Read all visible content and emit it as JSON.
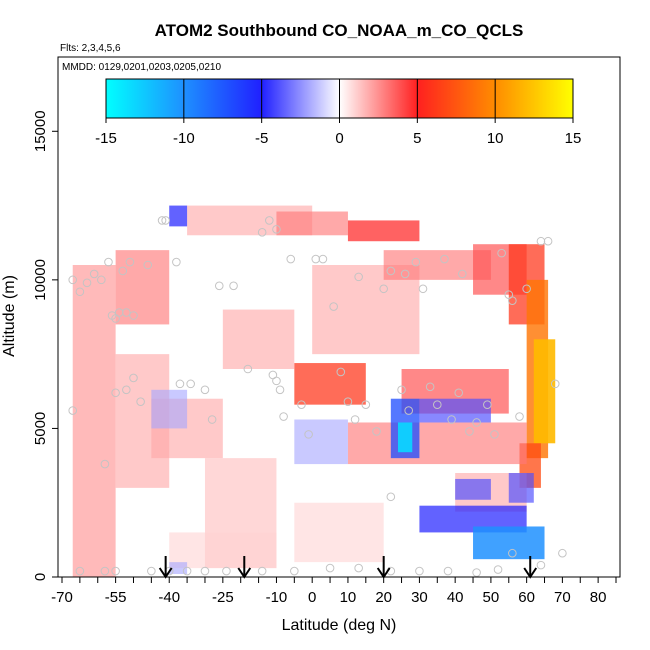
{
  "chart_data": {
    "type": "heatmap",
    "title": "ATOM2 Southbound CO_NOAA_m_CO_QCLS",
    "flights_label": "Flts: 2,3,4,5,6",
    "dates_label": "MMDD: 0129,0201,0203,0205,0210",
    "xlabel": "Latitude (deg N)",
    "ylabel": "Altitude (m)",
    "xlim": [
      -70,
      85
    ],
    "ylim": [
      0,
      17500
    ],
    "x_ticks": [
      -70,
      -55,
      -40,
      -25,
      -10,
      0,
      10,
      20,
      30,
      40,
      50,
      60,
      70,
      80
    ],
    "x_tick_labels": [
      "-70",
      "-55",
      "-40",
      "-25",
      "-10",
      "0",
      "10",
      "20",
      "30",
      "40",
      "50",
      "60",
      "70",
      "80"
    ],
    "x_minor_ticks": [
      -65,
      -60,
      -50,
      -45,
      -35,
      -30,
      -20,
      -15,
      -5,
      5,
      15,
      25,
      35,
      45,
      55,
      65,
      75,
      85
    ],
    "y_ticks": [
      0,
      5000,
      10000,
      15000
    ],
    "y_tick_labels": [
      "0",
      "5000",
      "10000",
      "15000"
    ],
    "colorbar": {
      "ticks": [
        -15,
        -10,
        -5,
        0,
        5,
        10,
        15
      ],
      "labels": [
        "-15",
        "-10",
        "-5",
        "0",
        "5",
        "10",
        "15"
      ],
      "stops": [
        {
          "v": -15,
          "color": "#00ffff"
        },
        {
          "v": -10,
          "color": "#1e90ff"
        },
        {
          "v": -5,
          "color": "#2020ff"
        },
        {
          "v": 0,
          "color": "#ffffff"
        },
        {
          "v": 5,
          "color": "#ff2020"
        },
        {
          "v": 10,
          "color": "#ff8c00"
        },
        {
          "v": 15,
          "color": "#ffff00"
        }
      ]
    },
    "arrows_lat": [
      -41,
      -19,
      20,
      61
    ],
    "regions": [
      {
        "lat": [
          -67,
          -55
        ],
        "alt": [
          0,
          10500
        ],
        "value": 2.5
      },
      {
        "lat": [
          -55,
          -40
        ],
        "alt": [
          8500,
          11000
        ],
        "value": 3
      },
      {
        "lat": [
          -55,
          -40
        ],
        "alt": [
          3000,
          7500
        ],
        "value": 2
      },
      {
        "lat": [
          -45,
          -25
        ],
        "alt": [
          4000,
          6000
        ],
        "value": 2
      },
      {
        "lat": [
          -30,
          -10
        ],
        "alt": [
          300,
          4000
        ],
        "value": 1.5
      },
      {
        "lat": [
          -35,
          0
        ],
        "alt": [
          11500,
          12500
        ],
        "value": 2
      },
      {
        "lat": [
          -10,
          10
        ],
        "alt": [
          11500,
          12300
        ],
        "value": 3
      },
      {
        "lat": [
          10,
          30
        ],
        "alt": [
          11300,
          12000
        ],
        "value": 5
      },
      {
        "lat": [
          -5,
          15
        ],
        "alt": [
          5800,
          7200
        ],
        "value": 6
      },
      {
        "lat": [
          -25,
          -5
        ],
        "alt": [
          7000,
          9000
        ],
        "value": 2
      },
      {
        "lat": [
          0,
          30
        ],
        "alt": [
          7500,
          10500
        ],
        "value": 2
      },
      {
        "lat": [
          20,
          50
        ],
        "alt": [
          10000,
          11000
        ],
        "value": 3
      },
      {
        "lat": [
          45,
          60
        ],
        "alt": [
          9500,
          11200
        ],
        "value": 4
      },
      {
        "lat": [
          55,
          65
        ],
        "alt": [
          8500,
          11200
        ],
        "value": 6
      },
      {
        "lat": [
          60,
          66
        ],
        "alt": [
          4000,
          10000
        ],
        "value": 9
      },
      {
        "lat": [
          62,
          68
        ],
        "alt": [
          4500,
          8000
        ],
        "value": 12
      },
      {
        "lat": [
          58,
          64
        ],
        "alt": [
          3000,
          4500
        ],
        "value": 7
      },
      {
        "lat": [
          10,
          60
        ],
        "alt": [
          3800,
          5200
        ],
        "value": 3
      },
      {
        "lat": [
          25,
          55
        ],
        "alt": [
          5500,
          7000
        ],
        "value": 4
      },
      {
        "lat": [
          40,
          60
        ],
        "alt": [
          2200,
          3500
        ],
        "value": 2
      },
      {
        "lat": [
          -40,
          -10
        ],
        "alt": [
          300,
          1500
        ],
        "value": 1
      },
      {
        "lat": [
          -5,
          20
        ],
        "alt": [
          500,
          2500
        ],
        "value": 1
      },
      {
        "lat": [
          -5,
          10
        ],
        "alt": [
          3800,
          5300
        ],
        "value": -2
      },
      {
        "lat": [
          -45,
          -35
        ],
        "alt": [
          5000,
          6300
        ],
        "value": -2
      },
      {
        "lat": [
          -40,
          -35
        ],
        "alt": [
          11800,
          12500
        ],
        "value": -5
      },
      {
        "lat": [
          22,
          30
        ],
        "alt": [
          4000,
          6000
        ],
        "value": -7
      },
      {
        "lat": [
          24,
          28
        ],
        "alt": [
          4200,
          5200
        ],
        "value": -13
      },
      {
        "lat": [
          30,
          50
        ],
        "alt": [
          5200,
          6000
        ],
        "value": -4
      },
      {
        "lat": [
          30,
          60
        ],
        "alt": [
          1500,
          2400
        ],
        "value": -5
      },
      {
        "lat": [
          45,
          65
        ],
        "alt": [
          600,
          1700
        ],
        "value": -10
      },
      {
        "lat": [
          40,
          50
        ],
        "alt": [
          2600,
          3300
        ],
        "value": -4
      },
      {
        "lat": [
          55,
          62
        ],
        "alt": [
          2500,
          3500
        ],
        "value": -4
      },
      {
        "lat": [
          -40,
          -35
        ],
        "alt": [
          100,
          500
        ],
        "value": -2
      }
    ],
    "points": [
      [
        -67,
        10000
      ],
      [
        -67,
        5600
      ],
      [
        -65,
        9600
      ],
      [
        -63,
        9900
      ],
      [
        -61,
        10200
      ],
      [
        -59,
        10000
      ],
      [
        -58,
        3800
      ],
      [
        -57,
        10600
      ],
      [
        -56,
        8800
      ],
      [
        -55,
        8700
      ],
      [
        -54,
        8900
      ],
      [
        -53,
        10300
      ],
      [
        -52,
        8900
      ],
      [
        -51,
        10600
      ],
      [
        -50,
        8800
      ],
      [
        -52,
        6300
      ],
      [
        -50,
        6700
      ],
      [
        -55,
        6200
      ],
      [
        -48,
        5900
      ],
      [
        -46,
        10500
      ],
      [
        -42,
        12000
      ],
      [
        -41,
        12000
      ],
      [
        -38,
        10600
      ],
      [
        -37,
        6500
      ],
      [
        -34,
        6500
      ],
      [
        -30,
        6300
      ],
      [
        -28,
        5300
      ],
      [
        -26,
        9800
      ],
      [
        -22,
        9800
      ],
      [
        -18,
        7000
      ],
      [
        -14,
        11600
      ],
      [
        -12,
        12000
      ],
      [
        -10,
        11700
      ],
      [
        -11,
        6800
      ],
      [
        -10,
        6600
      ],
      [
        -9,
        6300
      ],
      [
        -8,
        5400
      ],
      [
        -6,
        10700
      ],
      [
        -3,
        5800
      ],
      [
        -1,
        4800
      ],
      [
        1,
        10700
      ],
      [
        3,
        10700
      ],
      [
        6,
        9100
      ],
      [
        8,
        6900
      ],
      [
        10,
        5900
      ],
      [
        12,
        5300
      ],
      [
        13,
        10100
      ],
      [
        15,
        5800
      ],
      [
        18,
        4900
      ],
      [
        20,
        9700
      ],
      [
        22,
        10300
      ],
      [
        22,
        2700
      ],
      [
        25,
        6300
      ],
      [
        26,
        10200
      ],
      [
        27,
        5600
      ],
      [
        29,
        10600
      ],
      [
        31,
        9700
      ],
      [
        33,
        6400
      ],
      [
        35,
        5800
      ],
      [
        37,
        10700
      ],
      [
        39,
        5300
      ],
      [
        41,
        6200
      ],
      [
        42,
        10200
      ],
      [
        44,
        4900
      ],
      [
        46,
        5200
      ],
      [
        49,
        5800
      ],
      [
        51,
        4800
      ],
      [
        53,
        10900
      ],
      [
        55,
        9500
      ],
      [
        56,
        9300
      ],
      [
        58,
        5400
      ],
      [
        60,
        9700
      ],
      [
        64,
        11300
      ],
      [
        66,
        11300
      ],
      [
        68,
        6500
      ],
      [
        70,
        800
      ],
      [
        -65,
        200
      ],
      [
        -58,
        200
      ],
      [
        -55,
        200
      ],
      [
        -45,
        200
      ],
      [
        -40,
        200
      ],
      [
        -35,
        200
      ],
      [
        -30,
        200
      ],
      [
        -24,
        200
      ],
      [
        -14,
        200
      ],
      [
        -5,
        200
      ],
      [
        5,
        300
      ],
      [
        13,
        300
      ],
      [
        22,
        200
      ],
      [
        30,
        200
      ],
      [
        38,
        200
      ],
      [
        46,
        150
      ],
      [
        52,
        250
      ],
      [
        56,
        800
      ],
      [
        64,
        400
      ]
    ]
  }
}
